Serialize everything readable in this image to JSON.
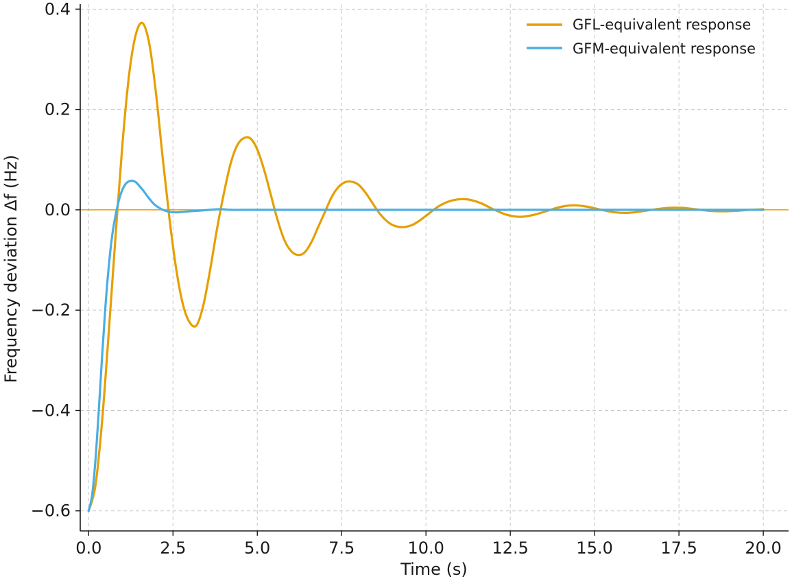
{
  "chart_data": {
    "type": "line",
    "xlabel": "Time (s)",
    "ylabel": "Frequency deviation Δf (Hz)",
    "xlim": [
      -0.25,
      20.75
    ],
    "ylim": [
      -0.64,
      0.41
    ],
    "x_ticks": [
      0.0,
      2.5,
      5.0,
      7.5,
      10.0,
      12.5,
      15.0,
      17.5,
      20.0
    ],
    "x_tick_labels": [
      "0.0",
      "2.5",
      "5.0",
      "7.5",
      "10.0",
      "12.5",
      "15.0",
      "17.5",
      "20.0"
    ],
    "y_ticks": [
      -0.6,
      -0.4,
      -0.2,
      0.0,
      0.2,
      0.4
    ],
    "y_tick_labels": [
      "−0.6",
      "−0.4",
      "−0.2",
      "0.0",
      "0.2",
      "0.4"
    ],
    "grid": true,
    "legend_position": "top-right",
    "reference_line": {
      "y": 0.0,
      "color": "#e69f00"
    },
    "series": [
      {
        "name": "GFL-equivalent response",
        "color": "#e69f00",
        "x": [
          0,
          0.2,
          0.4,
          0.6,
          0.8,
          1.0,
          1.2,
          1.4,
          1.6,
          1.8,
          2.0,
          2.2,
          2.4,
          2.6,
          2.8,
          3.0,
          3.2,
          3.4,
          3.6,
          3.8,
          4.0,
          4.2,
          4.4,
          4.6,
          4.8,
          5.0,
          5.2,
          5.4,
          5.6,
          5.8,
          6.0,
          6.2,
          6.4,
          6.6,
          6.8,
          7.0,
          7.2,
          7.4,
          7.6,
          7.8,
          8.0,
          8.2,
          8.4,
          8.6,
          8.8,
          9.0,
          9.2,
          9.4,
          9.6,
          9.8,
          10.0,
          10.4,
          10.8,
          11.2,
          11.6,
          12.0,
          12.4,
          12.8,
          13.2,
          13.6,
          14.0,
          14.4,
          14.8,
          15.2,
          15.6,
          16.0,
          16.4,
          16.8,
          17.2,
          17.6,
          18.0,
          18.4,
          18.8,
          19.2,
          19.6,
          20.0
        ],
        "y": [
          -0.6,
          -0.55,
          -0.42,
          -0.24,
          -0.05,
          0.13,
          0.27,
          0.35,
          0.372,
          0.33,
          0.23,
          0.1,
          -0.02,
          -0.12,
          -0.19,
          -0.225,
          -0.23,
          -0.19,
          -0.12,
          -0.04,
          0.03,
          0.09,
          0.128,
          0.143,
          0.142,
          0.12,
          0.08,
          0.03,
          -0.02,
          -0.06,
          -0.082,
          -0.09,
          -0.085,
          -0.065,
          -0.035,
          -0.005,
          0.025,
          0.045,
          0.055,
          0.056,
          0.05,
          0.035,
          0.015,
          -0.005,
          -0.02,
          -0.03,
          -0.034,
          -0.034,
          -0.03,
          -0.022,
          -0.012,
          0.008,
          0.019,
          0.021,
          0.014,
          0.001,
          -0.01,
          -0.014,
          -0.01,
          -0.002,
          0.006,
          0.009,
          0.006,
          0.0,
          -0.005,
          -0.006,
          -0.003,
          0.001,
          0.004,
          0.004,
          0.001,
          -0.002,
          -0.003,
          -0.002,
          0.0,
          0.001
        ]
      },
      {
        "name": "GFM-equivalent response",
        "color": "#4aaee3",
        "x": [
          0,
          0.1,
          0.2,
          0.3,
          0.4,
          0.5,
          0.6,
          0.7,
          0.8,
          0.9,
          1.0,
          1.1,
          1.2,
          1.3,
          1.4,
          1.5,
          1.6,
          1.7,
          1.8,
          1.9,
          2.0,
          2.2,
          2.4,
          2.6,
          2.8,
          3.0,
          3.2,
          3.4,
          3.6,
          3.8,
          4.0,
          4.2,
          4.6,
          5.0,
          6.0,
          8.0,
          10.0,
          12.0,
          14.0,
          16.0,
          18.0,
          20.0
        ],
        "y": [
          -0.6,
          -0.57,
          -0.5,
          -0.4,
          -0.29,
          -0.19,
          -0.11,
          -0.05,
          -0.01,
          0.02,
          0.04,
          0.052,
          0.057,
          0.058,
          0.055,
          0.048,
          0.04,
          0.031,
          0.022,
          0.014,
          0.008,
          0.0,
          -0.004,
          -0.005,
          -0.004,
          -0.003,
          -0.002,
          -0.001,
          0.0,
          0.001,
          0.001,
          0.0,
          0.0,
          0.0,
          0.0,
          0.0,
          0.0,
          0.0,
          0.0,
          0.0,
          0.0,
          0.0
        ]
      }
    ]
  }
}
